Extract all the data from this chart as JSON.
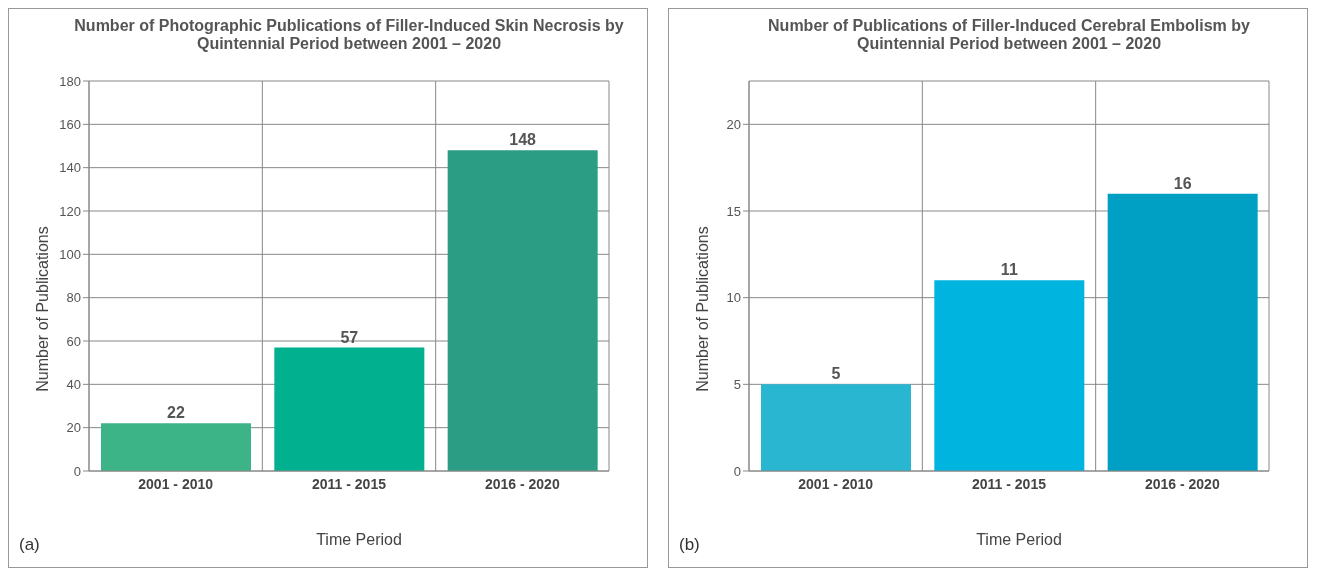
{
  "chart_data": [
    {
      "type": "bar",
      "title": "Number of Photographic Publications of Filler-Induced Skin Necrosis by Quintennial Period between 2001 – 2020",
      "xlabel": "Time Period",
      "ylabel": "Number of Publications",
      "categories": [
        "2001 - 2010",
        "2011 - 2015",
        "2016 - 2020"
      ],
      "values": [
        22,
        57,
        148
      ],
      "colors": [
        "#3db388",
        "#00b08e",
        "#2a9d84"
      ],
      "ylim": [
        0,
        180
      ],
      "yticks": [
        0,
        20,
        40,
        60,
        80,
        100,
        120,
        140,
        160,
        180
      ],
      "grid": true,
      "data_labels": true,
      "annotations": [
        "(a)"
      ]
    },
    {
      "type": "bar",
      "title": "Number of Publications of Filler-Induced Cerebral Embolism by Quintennial Period between 2001 – 2020",
      "xlabel": "Time Period",
      "ylabel": "Number of Publications",
      "categories": [
        "2001 - 2010",
        "2011 - 2015",
        "2016 - 2020"
      ],
      "values": [
        5,
        11,
        16
      ],
      "colors": [
        "#29b6d0",
        "#00b4e0",
        "#00a0c4"
      ],
      "ylim": [
        0,
        22.5
      ],
      "yticks": [
        0,
        5,
        10,
        15,
        20
      ],
      "grid": true,
      "data_labels": true,
      "annotations": [
        "(b)"
      ]
    }
  ]
}
